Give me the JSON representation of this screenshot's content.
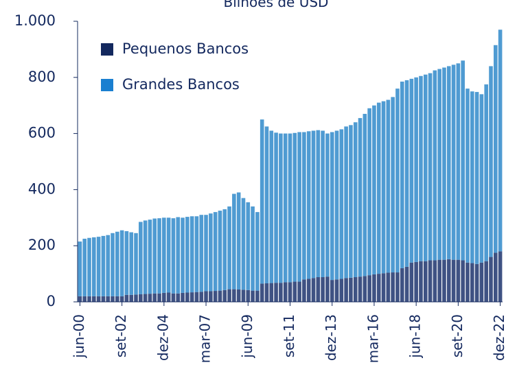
{
  "chart_data": {
    "type": "stacked_bar",
    "title": "Bilhões de USD",
    "categories": [
      "jun-00",
      null,
      null,
      null,
      null,
      null,
      null,
      null,
      null,
      "set-02",
      null,
      null,
      null,
      null,
      null,
      null,
      null,
      null,
      "dez-04",
      null,
      null,
      null,
      null,
      null,
      null,
      null,
      null,
      "mar-07",
      null,
      null,
      null,
      null,
      null,
      null,
      null,
      null,
      "jun-09",
      null,
      null,
      null,
      null,
      null,
      null,
      null,
      null,
      "set-11",
      null,
      null,
      null,
      null,
      null,
      null,
      null,
      null,
      "dez-13",
      null,
      null,
      null,
      null,
      null,
      null,
      null,
      null,
      "mar-16",
      null,
      null,
      null,
      null,
      null,
      null,
      null,
      null,
      "jun-18",
      null,
      null,
      null,
      null,
      null,
      null,
      null,
      null,
      "set-20",
      null,
      null,
      null,
      null,
      null,
      null,
      null,
      null,
      "dez-22"
    ],
    "series": [
      {
        "name": "Pequenos Bancos",
        "color": "#13285e",
        "bar_color": "#3f5283",
        "values": [
          20,
          20,
          20,
          20,
          20,
          20,
          20,
          20,
          20,
          20,
          25,
          25,
          26,
          27,
          28,
          29,
          30,
          30,
          32,
          33,
          30,
          30,
          32,
          33,
          34,
          35,
          36,
          38,
          38,
          39,
          40,
          42,
          45,
          45,
          44,
          43,
          42,
          40,
          40,
          65,
          66,
          67,
          68,
          68,
          70,
          70,
          72,
          72,
          80,
          82,
          85,
          88,
          88,
          90,
          78,
          80,
          82,
          85,
          86,
          88,
          90,
          92,
          95,
          98,
          100,
          102,
          104,
          105,
          105,
          120,
          125,
          140,
          142,
          145,
          145,
          148,
          148,
          150,
          150,
          152,
          150,
          150,
          148,
          140,
          138,
          135,
          140,
          145,
          160,
          175,
          180
        ]
      },
      {
        "name": "Grandes Bancos",
        "color": "#1a7fd0",
        "bar_color": "#4f9bd2",
        "values": [
          195,
          205,
          208,
          210,
          212,
          215,
          218,
          225,
          230,
          235,
          227,
          223,
          219,
          258,
          262,
          264,
          267,
          268,
          268,
          267,
          268,
          272,
          268,
          270,
          271,
          270,
          274,
          272,
          277,
          281,
          285,
          288,
          295,
          340,
          346,
          327,
          313,
          300,
          280,
          585,
          559,
          543,
          535,
          532,
          530,
          530,
          530,
          533,
          525,
          526,
          525,
          524,
          522,
          510,
          527,
          530,
          533,
          540,
          544,
          552,
          565,
          578,
          595,
          602,
          610,
          613,
          616,
          625,
          655,
          665,
          665,
          655,
          658,
          660,
          665,
          667,
          677,
          680,
          685,
          688,
          695,
          700,
          712,
          620,
          612,
          613,
          600,
          630,
          680,
          740,
          790
        ]
      }
    ],
    "ylim": [
      0,
      1000
    ],
    "yticks": [
      0,
      200,
      400,
      600,
      800,
      {
        "value": 1000,
        "label": "1.000"
      }
    ],
    "grid": false,
    "legend": "upper left"
  }
}
